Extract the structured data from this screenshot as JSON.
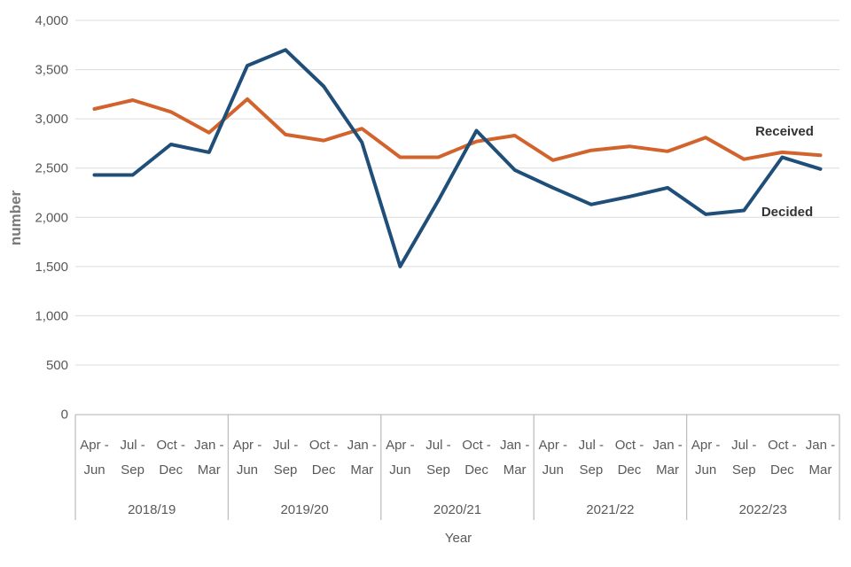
{
  "chart_data": {
    "type": "line",
    "title": "",
    "ylabel": "number",
    "xlabel": "Year",
    "ylim": [
      0,
      4000
    ],
    "ytick_interval": 500,
    "yticks": [
      0,
      500,
      1000,
      1500,
      2000,
      2500,
      3000,
      3500,
      4000
    ],
    "ytick_labels": [
      "0",
      "500",
      "1,000",
      "1,500",
      "2,000",
      "2,500",
      "3,000",
      "3,500",
      "4,000"
    ],
    "grid": true,
    "legend_position": "end-of-line-labels",
    "year_groups": [
      "2018/19",
      "2019/20",
      "2020/21",
      "2021/22",
      "2022/23"
    ],
    "quarters": [
      {
        "line1": "Apr -",
        "line2": "Jun"
      },
      {
        "line1": "Jul -",
        "line2": "Sep"
      },
      {
        "line1": "Oct -",
        "line2": "Dec"
      },
      {
        "line1": "Jan -",
        "line2": "Mar"
      }
    ],
    "categories": [
      "Apr-Jun 2018/19",
      "Jul-Sep 2018/19",
      "Oct-Dec 2018/19",
      "Jan-Mar 2018/19",
      "Apr-Jun 2019/20",
      "Jul-Sep 2019/20",
      "Oct-Dec 2019/20",
      "Jan-Mar 2019/20",
      "Apr-Jun 2020/21",
      "Jul-Sep 2020/21",
      "Oct-Dec 2020/21",
      "Jan-Mar 2020/21",
      "Apr-Jun 2021/22",
      "Jul-Sep 2021/22",
      "Oct-Dec 2021/22",
      "Jan-Mar 2021/22",
      "Apr-Jun 2022/23",
      "Jul-Sep 2022/23",
      "Oct-Dec 2022/23",
      "Jan-Mar 2022/23"
    ],
    "series": [
      {
        "name": "Received",
        "color": "#d2632c",
        "values": [
          3100,
          3190,
          3070,
          2860,
          3200,
          2840,
          2780,
          2900,
          2610,
          2610,
          2770,
          2830,
          2580,
          2680,
          2720,
          2670,
          2810,
          2590,
          2660,
          2630
        ]
      },
      {
        "name": "Decided",
        "color": "#1f4e79",
        "values": [
          2430,
          2430,
          2740,
          2660,
          3540,
          3700,
          3330,
          2760,
          1500,
          2170,
          2880,
          2480,
          2300,
          2130,
          2210,
          2300,
          2030,
          2070,
          2610,
          2490
        ]
      }
    ]
  },
  "colors": {
    "received_line": "#d2632c",
    "decided_line": "#1f4e79",
    "gridline": "#dcdcdc",
    "axis_line": "#bfbfbf",
    "tick_text": "#595959",
    "series_label_text": "#333333"
  }
}
